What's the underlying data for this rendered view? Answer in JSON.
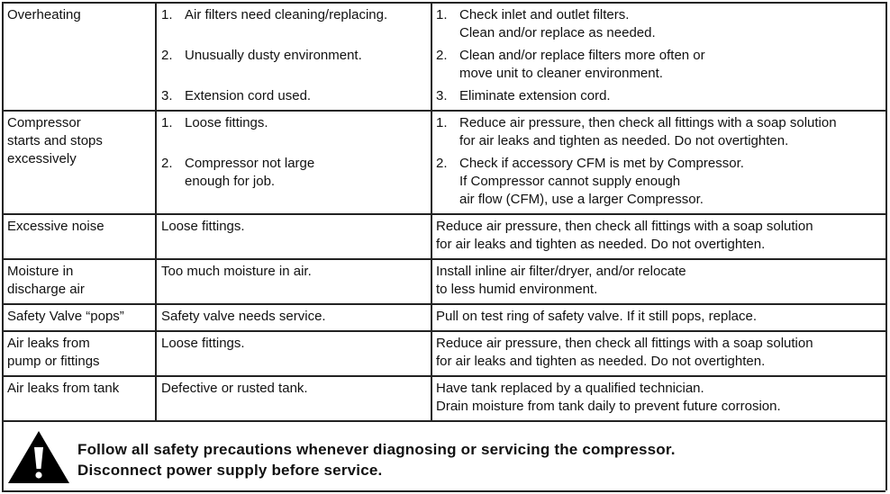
{
  "table": {
    "rows": [
      {
        "problem": [
          "Overheating"
        ],
        "causes": [
          {
            "number": "1.",
            "lines": [
              "Air filters need cleaning/replacing."
            ]
          },
          {
            "number": "2.",
            "lines": [
              "Unusually dusty environment."
            ]
          },
          {
            "number": "3.",
            "lines": [
              "Extension cord used."
            ]
          }
        ],
        "solutions": [
          {
            "number": "1.",
            "lines": [
              "Check inlet and outlet filters.",
              "Clean and/or replace as needed."
            ]
          },
          {
            "number": "2.",
            "lines": [
              "Clean and/or replace filters more often or",
              "move unit to cleaner environment."
            ]
          },
          {
            "number": "3.",
            "lines": [
              "Eliminate extension cord."
            ]
          }
        ]
      },
      {
        "problem": [
          "Compressor",
          "starts and stops",
          "excessively"
        ],
        "causes": [
          {
            "number": "1.",
            "lines": [
              "Loose fittings."
            ]
          },
          {
            "number": "2.",
            "lines": [
              "Compressor not large",
              "enough for job."
            ]
          }
        ],
        "solutions": [
          {
            "number": "1.",
            "lines": [
              "Reduce air pressure, then check all fittings with a soap solution",
              "for air leaks and tighten as needed.  Do not overtighten."
            ]
          },
          {
            "number": "2.",
            "lines": [
              "Check if accessory CFM is met by Compressor.",
              "If Compressor cannot supply enough",
              "air flow (CFM), use a larger Compressor."
            ]
          }
        ]
      },
      {
        "problem": [
          "Excessive noise"
        ],
        "causes": [
          {
            "lines": [
              "Loose fittings."
            ]
          }
        ],
        "solutions": [
          {
            "lines": [
              "Reduce air pressure, then check all fittings with a soap solution",
              "for air leaks and tighten as needed.  Do not overtighten."
            ]
          }
        ]
      },
      {
        "problem": [
          "Moisture in",
          "discharge air"
        ],
        "causes": [
          {
            "lines": [
              "Too much moisture in air."
            ]
          }
        ],
        "solutions": [
          {
            "lines": [
              "Install inline air filter/dryer, and/or relocate",
              "to less humid environment."
            ]
          }
        ]
      },
      {
        "problem": [
          "Safety Valve “pops”"
        ],
        "causes": [
          {
            "lines": [
              "Safety valve needs service."
            ]
          }
        ],
        "solutions": [
          {
            "lines": [
              "Pull on test ring of safety valve.  If it still pops, replace."
            ]
          }
        ]
      },
      {
        "problem": [
          "Air leaks from",
          "pump or fittings"
        ],
        "causes": [
          {
            "lines": [
              "Loose fittings."
            ]
          }
        ],
        "solutions": [
          {
            "lines": [
              "Reduce air pressure, then check all fittings with a soap solution",
              "for air leaks and tighten as needed.  Do not overtighten."
            ]
          }
        ]
      },
      {
        "problem": [
          "Air leaks from tank"
        ],
        "causes": [
          {
            "lines": [
              "Defective or rusted tank."
            ]
          }
        ],
        "solutions": [
          {
            "lines": [
              "Have tank replaced by a qualified technician.",
              "Drain moisture from tank daily to prevent future corrosion."
            ]
          }
        ]
      }
    ]
  },
  "warning": {
    "lines": [
      "Follow all safety precautions whenever diagnosing or servicing the compressor.",
      "Disconnect power supply before service."
    ]
  }
}
